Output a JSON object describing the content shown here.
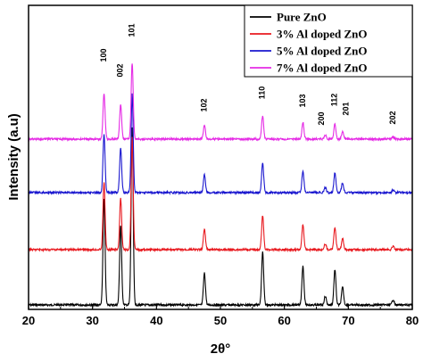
{
  "chart_data": {
    "type": "line",
    "xlabel": "2θ°",
    "ylabel": "Intensity (a.u)",
    "xlim": [
      20,
      80
    ],
    "x_ticks": [
      20,
      30,
      40,
      50,
      60,
      70,
      80
    ],
    "y_ticks_shown": false,
    "grid": false,
    "legend_position": "top-right",
    "peaks": [
      {
        "label": "100",
        "x": 31.8,
        "rel": 0.6
      },
      {
        "label": "002",
        "x": 34.4,
        "rel": 0.45
      },
      {
        "label": "101",
        "x": 36.2,
        "rel": 1.0
      },
      {
        "label": "102",
        "x": 47.5,
        "rel": 0.18
      },
      {
        "label": "110",
        "x": 56.6,
        "rel": 0.3
      },
      {
        "label": "103",
        "x": 62.9,
        "rel": 0.22
      },
      {
        "label": "200",
        "x": 66.4,
        "rel": 0.05
      },
      {
        "label": "112",
        "x": 67.9,
        "rel": 0.2
      },
      {
        "label": "201",
        "x": 69.1,
        "rel": 0.1
      },
      {
        "label": "202",
        "x": 77.0,
        "rel": 0.03
      }
    ],
    "series": [
      {
        "name": "Pure ZnO",
        "color": "#000000",
        "offset": 0.0,
        "scale": 1.0
      },
      {
        "name": "3% Al doped ZnO",
        "color": "#e8191f",
        "offset": 1.0,
        "scale": 0.92
      },
      {
        "name": "5% Al doped ZnO",
        "color": "#1a17cf",
        "offset": 2.0,
        "scale": 0.8
      },
      {
        "name": "7% Al doped ZnO",
        "color": "#e52be5",
        "offset": 3.0,
        "scale": 0.62
      }
    ]
  }
}
